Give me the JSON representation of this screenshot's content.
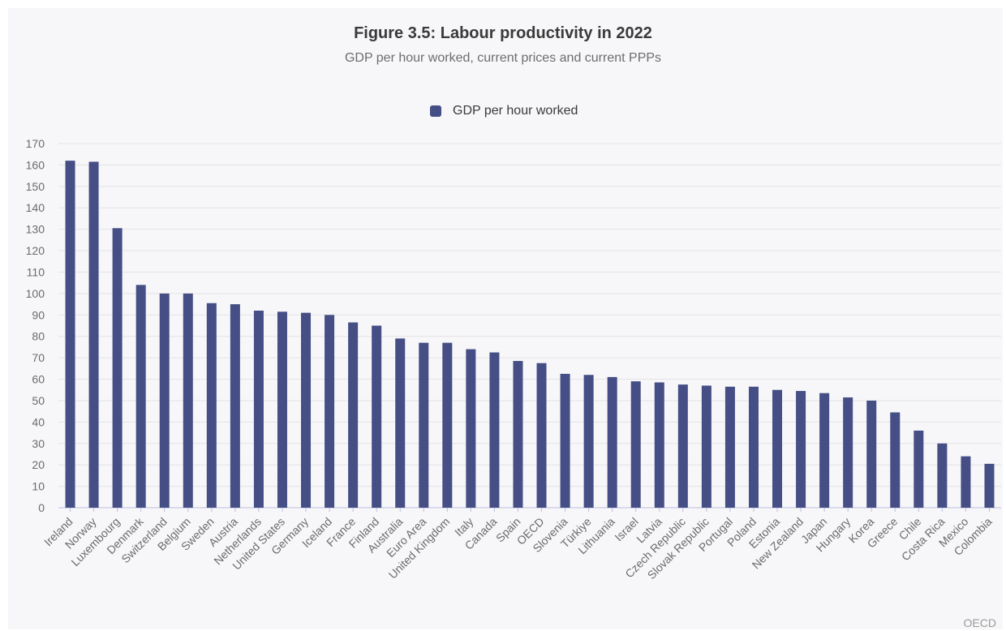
{
  "title": "Figure 3.5: Labour productivity in 2022",
  "subtitle": "GDP per hour worked, current prices and current PPPs",
  "source": "OECD",
  "colors": {
    "bar": "#454e85",
    "grid": "#e3e3e8",
    "axis": "#b8bfe0"
  },
  "chart_data": {
    "type": "bar",
    "title": "Figure 3.5: Labour productivity in 2022",
    "subtitle": "GDP per hour worked, current prices and current PPPs",
    "xlabel": "",
    "ylabel": "",
    "ylim": [
      0,
      170
    ],
    "yticks": [
      0,
      10,
      20,
      30,
      40,
      50,
      60,
      70,
      80,
      90,
      100,
      110,
      120,
      130,
      140,
      150,
      160,
      170
    ],
    "grid": true,
    "legend_position": "top",
    "categories": [
      "Ireland",
      "Norway",
      "Luxembourg",
      "Denmark",
      "Switzerland",
      "Belgium",
      "Sweden",
      "Austria",
      "Netherlands",
      "United States",
      "Germany",
      "Iceland",
      "France",
      "Finland",
      "Australia",
      "Euro Area",
      "United Kingdom",
      "Italy",
      "Canada",
      "Spain",
      "OECD",
      "Slovenia",
      "Türkiye",
      "Lithuania",
      "Israel",
      "Latvia",
      "Czech Republic",
      "Slovak Republic",
      "Portugal",
      "Poland",
      "Estonia",
      "New Zealand",
      "Japan",
      "Hungary",
      "Korea",
      "Greece",
      "Chile",
      "Costa Rica",
      "Mexico",
      "Colombia"
    ],
    "series": [
      {
        "name": "GDP per hour worked",
        "values": [
          162,
          161.5,
          130.5,
          104,
          100,
          100,
          95.5,
          95,
          92,
          91.5,
          91,
          90,
          86.5,
          85,
          79,
          77,
          77,
          74,
          72.5,
          68.5,
          67.5,
          62.5,
          62,
          61,
          59,
          58.5,
          57.5,
          57,
          56.5,
          56.5,
          55,
          54.5,
          53.5,
          51.5,
          50,
          44.5,
          36,
          30,
          24,
          20.5
        ]
      }
    ]
  }
}
